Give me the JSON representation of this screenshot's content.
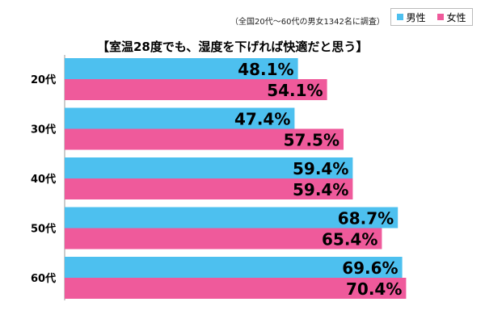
{
  "note": "（全国20代〜60代の男女1342名に調査）",
  "legend": {
    "male": "男性",
    "female": "女性"
  },
  "colors": {
    "male": "#4dc0ef",
    "female": "#ef5a9b"
  },
  "chart_data": {
    "type": "bar",
    "orientation": "horizontal",
    "title": "【室温28度でも、湿度を下げれば快適だと思う】",
    "categories": [
      "20代",
      "30代",
      "40代",
      "50代",
      "60代"
    ],
    "series": [
      {
        "name": "男性",
        "values": [
          48.1,
          47.4,
          59.4,
          68.7,
          69.6
        ],
        "labels": [
          "48.1%",
          "47.4%",
          "59.4%",
          "68.7%",
          "69.6%"
        ]
      },
      {
        "name": "女性",
        "values": [
          54.1,
          57.5,
          59.4,
          65.4,
          70.4
        ],
        "labels": [
          "54.1%",
          "57.5%",
          "59.4%",
          "65.4%",
          "70.4%"
        ]
      }
    ],
    "xlim": [
      0,
      100
    ],
    "grid": false,
    "legend_position": "top-right"
  }
}
